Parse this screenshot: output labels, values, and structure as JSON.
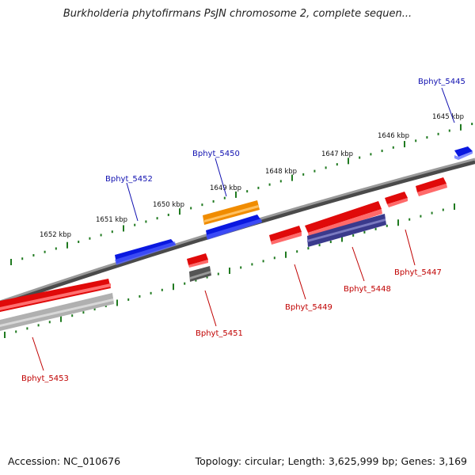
{
  "title": "Burkholderia phytofirmans PsJN chromosome 2, complete sequen...",
  "accession": "Accession: NC_010676",
  "summary": "Topology: circular; Length: 3,625,999 bp; Genes: 3,169",
  "colors": {
    "background": "#ffffff",
    "backbone": "#777777",
    "tick": "#207a20",
    "forward_gene": "#0a18e0",
    "reverse_gene": "#e00a0a",
    "orange_gene": "#f08c00",
    "purple_gene": "#3a3a8c",
    "dark_gray_gene": "#555555",
    "light_gray_gene": "#b0b0b0",
    "label_blue": "#1010b0",
    "label_red": "#c00000"
  },
  "ruler_labels": [
    "1652 kbp",
    "1651 kbp",
    "1650 kbp",
    "1649 kbp",
    "1648 kbp",
    "1647 kbp",
    "1646 kbp",
    "1645 kbp"
  ],
  "gene_labels_blue": [
    "Bphyt_5445",
    "Bphyt_5450",
    "Bphyt_5452"
  ],
  "gene_labels_red": [
    "Bphyt_5453",
    "Bphyt_5451",
    "Bphyt_5449",
    "Bphyt_5448",
    "Bphyt_5447"
  ]
}
